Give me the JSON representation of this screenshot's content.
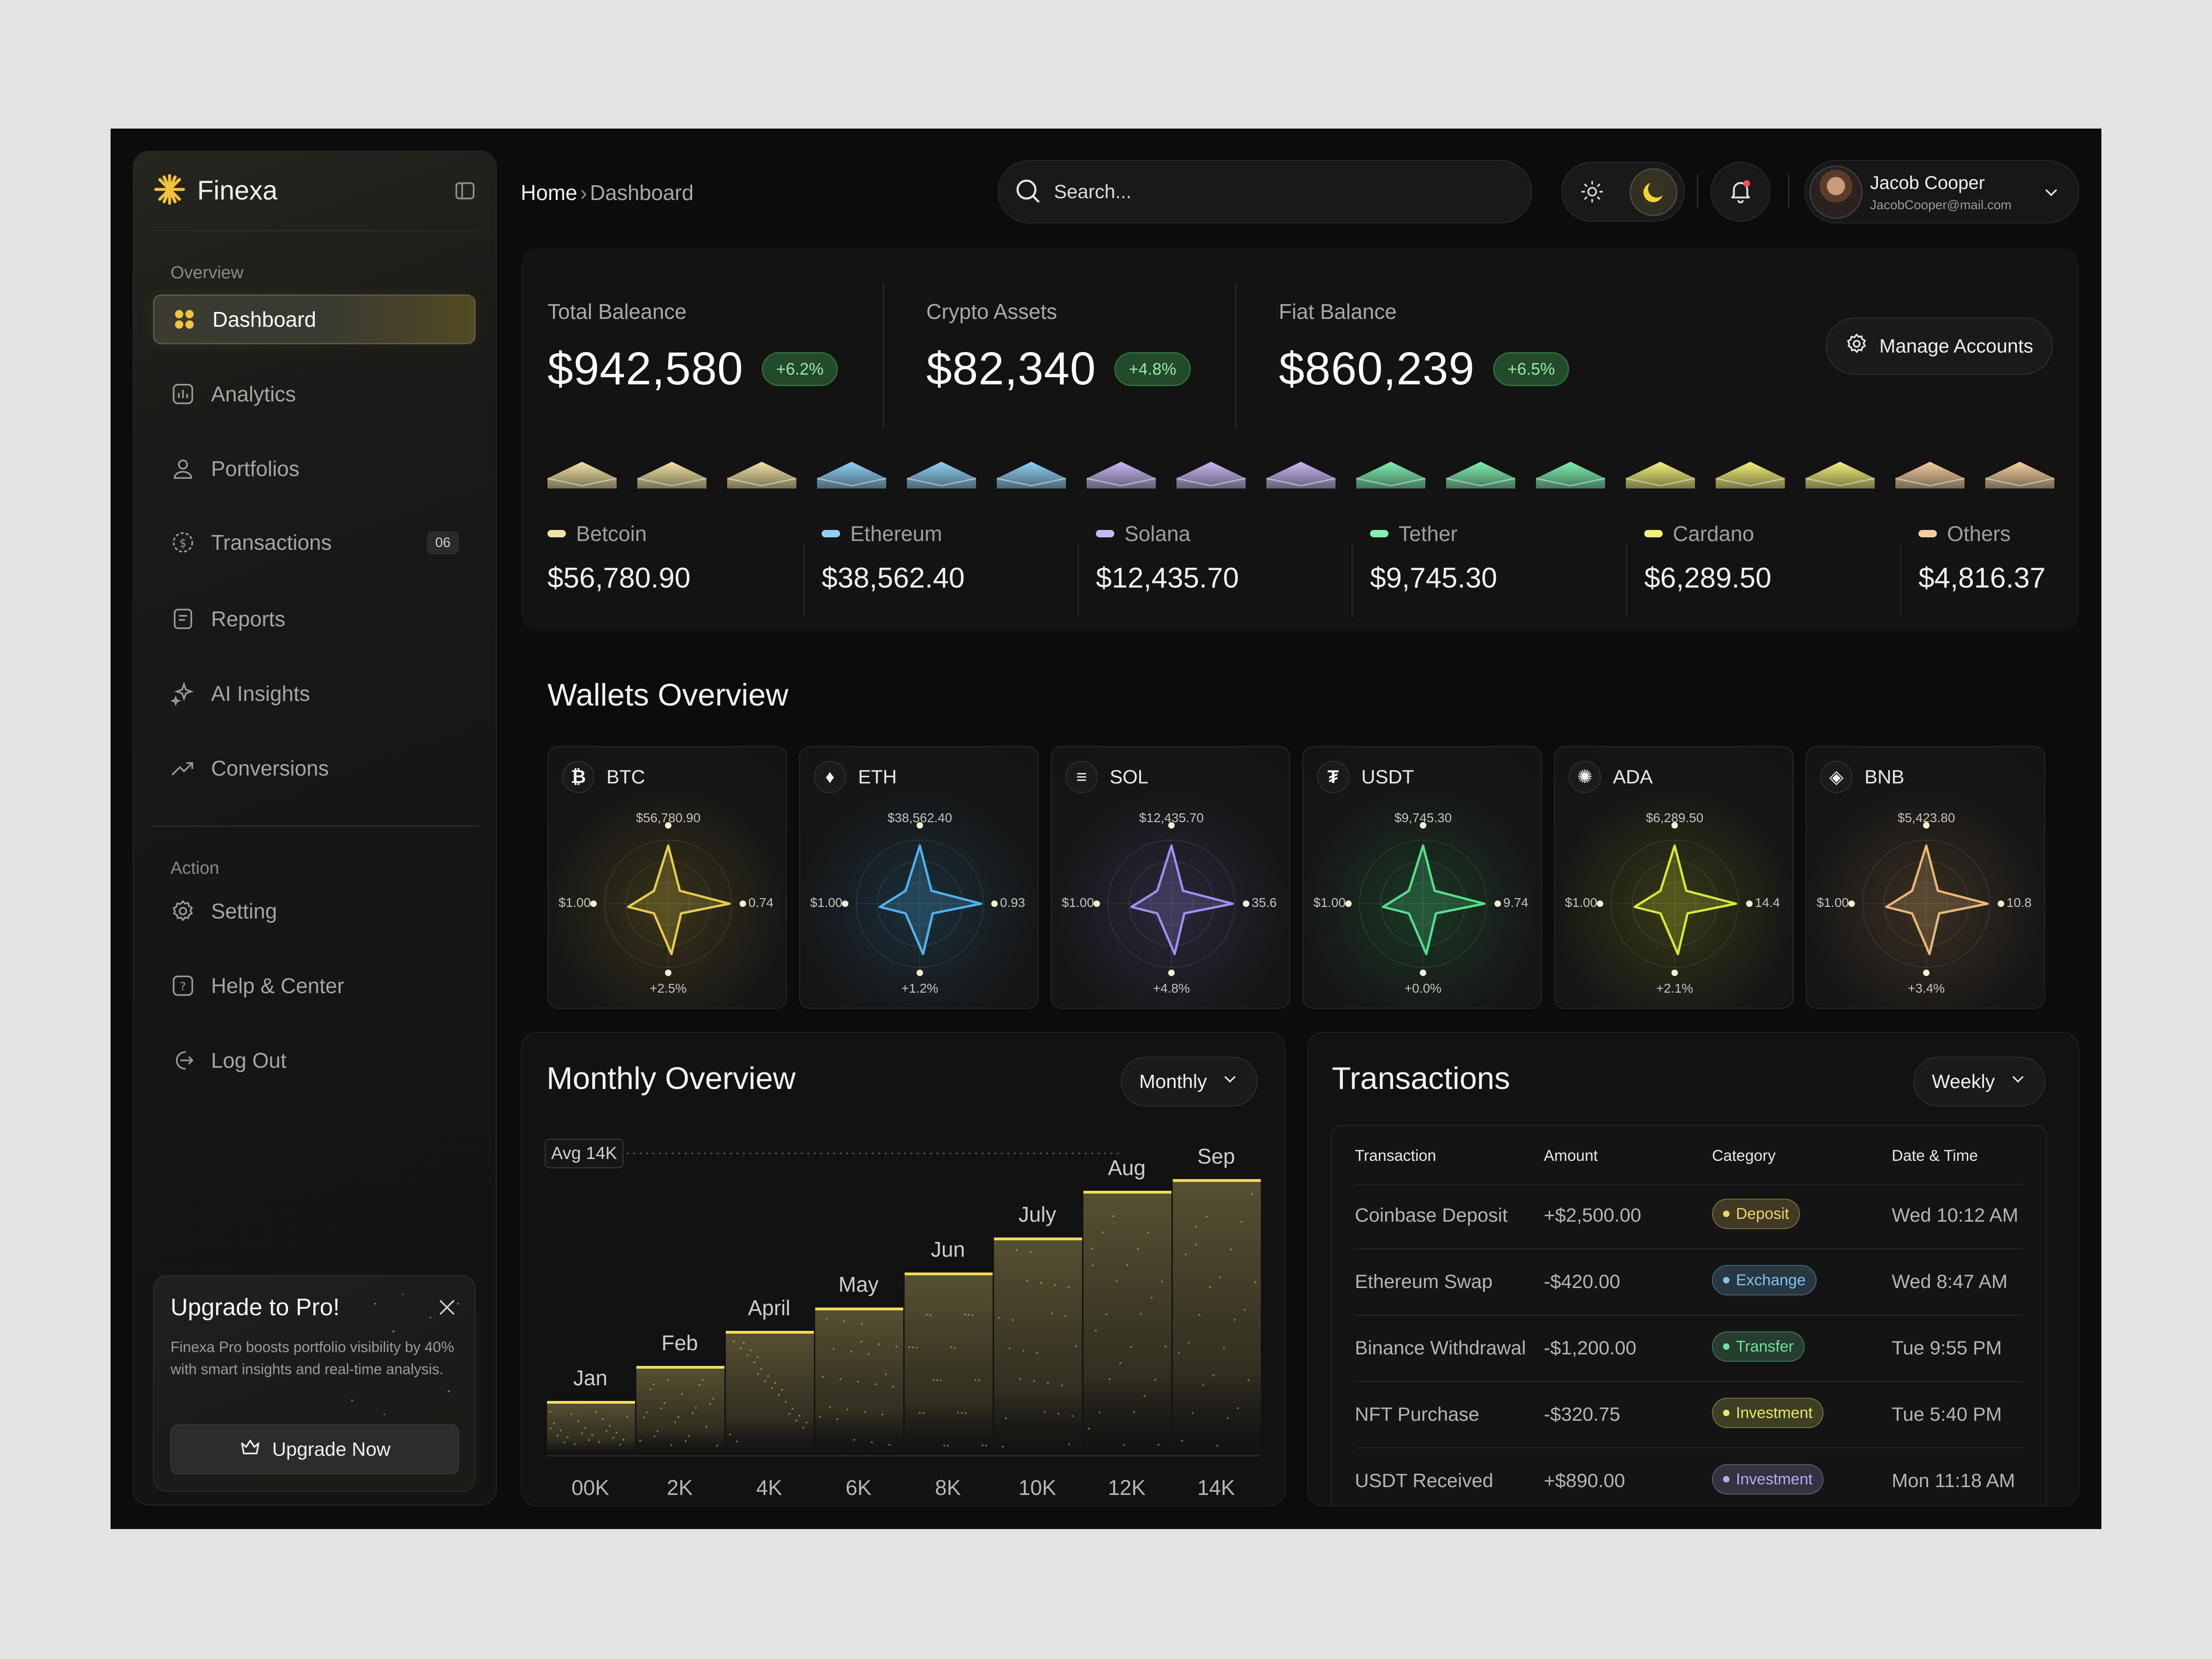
{
  "app": {
    "name": "Finexa"
  },
  "sidebar": {
    "overview_label": "Overview",
    "action_label": "Action",
    "items": [
      {
        "label": "Dashboard"
      },
      {
        "label": "Analytics"
      },
      {
        "label": "Portfolios"
      },
      {
        "label": "Transactions",
        "badge": "06"
      },
      {
        "label": "Reports"
      },
      {
        "label": "AI Insights"
      },
      {
        "label": "Conversions"
      }
    ],
    "actions": [
      {
        "label": "Setting"
      },
      {
        "label": "Help & Center"
      },
      {
        "label": "Log Out"
      }
    ],
    "upgrade": {
      "title": "Upgrade to Pro!",
      "text": "Finexa Pro boosts portfolio visibility by 40% with smart insights and real-time analysis.",
      "button": "Upgrade Now"
    }
  },
  "header": {
    "breadcrumb_home": "Home",
    "breadcrumb_sep": "›",
    "breadcrumb_current": "Dashboard",
    "search_placeholder": "Search...",
    "user_name": "Jacob Cooper",
    "user_email": "JacobCooper@mail.com"
  },
  "balances": [
    {
      "label": "Total Baleance",
      "value": "$942,580",
      "change": "+6.2%"
    },
    {
      "label": "Crypto Assets",
      "value": "$82,340",
      "change": "+4.8%"
    },
    {
      "label": "Fiat Balance",
      "value": "$860,239",
      "change": "+6.5%"
    }
  ],
  "manage_accounts": "Manage Accounts",
  "coins": [
    {
      "name": "Betcoin",
      "value": "$56,780.90",
      "color": "#f1e3a3"
    },
    {
      "name": "Ethereum",
      "value": "$38,562.40",
      "color": "#8fd0f5"
    },
    {
      "name": "Solana",
      "value": "$12,435.70",
      "color": "#c9b9f3"
    },
    {
      "name": "Tether",
      "value": "$9,745.30",
      "color": "#7ff0b0"
    },
    {
      "name": "Cardano",
      "value": "$6,289.50",
      "color": "#f4f07a"
    },
    {
      "name": "Others",
      "value": "$4,816.37",
      "color": "#f3cf9e"
    }
  ],
  "wallets_title": "Wallets Overview",
  "wallets": [
    {
      "symbol": "BTC",
      "icon": "₿",
      "top": "$56,780.90",
      "left": "$1.00",
      "right": "0.74",
      "bottom": "+2.5%",
      "color": "#e7cb4c"
    },
    {
      "symbol": "ETH",
      "icon": "♦",
      "top": "$38,562.40",
      "left": "$1.00",
      "right": "0.93",
      "bottom": "+1.2%",
      "color": "#4fb4ec"
    },
    {
      "symbol": "SOL",
      "icon": "≡",
      "top": "$12,435.70",
      "left": "$1.00",
      "right": "35.6",
      "bottom": "+4.8%",
      "color": "#a48ef0"
    },
    {
      "symbol": "USDT",
      "icon": "₮",
      "top": "$9,745.30",
      "left": "$1.00",
      "right": "9.74",
      "bottom": "+0.0%",
      "color": "#55e08a"
    },
    {
      "symbol": "ADA",
      "icon": "✺",
      "top": "$6,289.50",
      "left": "$1.00",
      "right": "14.4",
      "bottom": "+2.1%",
      "color": "#d6e83a"
    },
    {
      "symbol": "BNB",
      "icon": "◈",
      "top": "$5,423.80",
      "left": "$1.00",
      "right": "10.8",
      "bottom": "+3.4%",
      "color": "#e9b777"
    }
  ],
  "monthly": {
    "title": "Monthly Overview",
    "period": "Monthly",
    "avg_label": "Avg 14K"
  },
  "chart_data": {
    "type": "bar",
    "categories": [
      "Jan",
      "Feb",
      "April",
      "May",
      "Jun",
      "July",
      "Aug",
      "Sep"
    ],
    "values": [
      1.5,
      3.0,
      4.5,
      5.5,
      7.0,
      8.5,
      10.5,
      11.0
    ],
    "x_tick_labels": [
      "00K",
      "2K",
      "4K",
      "6K",
      "8K",
      "10K",
      "12K",
      "14K"
    ],
    "reference_line": "Avg 14K",
    "ylim": [
      0,
      12
    ],
    "grid": false,
    "legend": "none"
  },
  "transactions": {
    "title": "Transactions",
    "period": "Weekly",
    "headers": [
      "Transaction",
      "Amount",
      "Category",
      "Date & Time"
    ],
    "rows": [
      {
        "name": "Coinbase Deposit",
        "amount": "+$2,500.00",
        "category": "Deposit",
        "date": "Wed 10:12 AM",
        "color": "#f1d36b"
      },
      {
        "name": "Ethereum Swap",
        "amount": "-$420.00",
        "category": "Exchange",
        "date": "Wed 8:47 AM",
        "color": "#7cc3f2"
      },
      {
        "name": "Binance Withdrawal",
        "amount": "-$1,200.00",
        "category": "Transfer",
        "date": "Tue 9:55 PM",
        "color": "#6fe39a"
      },
      {
        "name": "NFT Purchase",
        "amount": "-$320.75",
        "category": "Investment",
        "date": "Tue 5:40 PM",
        "color": "#e6e868"
      },
      {
        "name": "USDT Received",
        "amount": "+$890.00",
        "category": "Investment",
        "date": "Mon 11:18 AM",
        "color": "#b9a9f0"
      }
    ]
  }
}
